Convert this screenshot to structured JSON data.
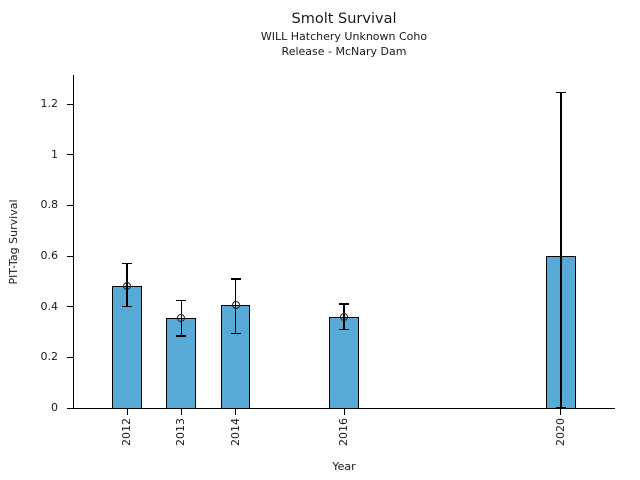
{
  "chart_data": {
    "type": "bar",
    "title": "Smolt Survival",
    "subtitle1": "WILL Hatchery Unknown Coho",
    "subtitle2": "Release - McNary Dam",
    "xlabel": "Year",
    "ylabel": "PIT-Tag Survival",
    "xlim": [
      2011,
      2021
    ],
    "ylim": [
      0,
      1.315
    ],
    "grid": false,
    "legend": false,
    "bar_color": "#58AAD6",
    "bar_edge_color": "#000000",
    "error_bar_color": "#000000",
    "bar_width_years": 0.55,
    "yticks": [
      {
        "v": 0,
        "label": "0"
      },
      {
        "v": 0.2,
        "label": "0.2"
      },
      {
        "v": 0.4,
        "label": "0.4"
      },
      {
        "v": 0.6,
        "label": "0.6"
      },
      {
        "v": 0.8,
        "label": "0.8"
      },
      {
        "v": 1,
        "label": "1"
      },
      {
        "v": 1.2,
        "label": "1.2"
      }
    ],
    "points": [
      {
        "year": 2012,
        "label": "2012",
        "value": 0.48,
        "err_low": 0.4,
        "err_high": 0.57,
        "marker": true
      },
      {
        "year": 2013,
        "label": "2013",
        "value": 0.355,
        "err_low": 0.285,
        "err_high": 0.425,
        "marker": true
      },
      {
        "year": 2014,
        "label": "2014",
        "value": 0.405,
        "err_low": 0.295,
        "err_high": 0.51,
        "marker": true
      },
      {
        "year": 2016,
        "label": "2016",
        "value": 0.36,
        "err_low": 0.31,
        "err_high": 0.41,
        "marker": true
      },
      {
        "year": 2020,
        "label": "2020",
        "value": 0.6,
        "err_low": 0.0,
        "err_high": 1.245,
        "marker": false
      }
    ]
  }
}
